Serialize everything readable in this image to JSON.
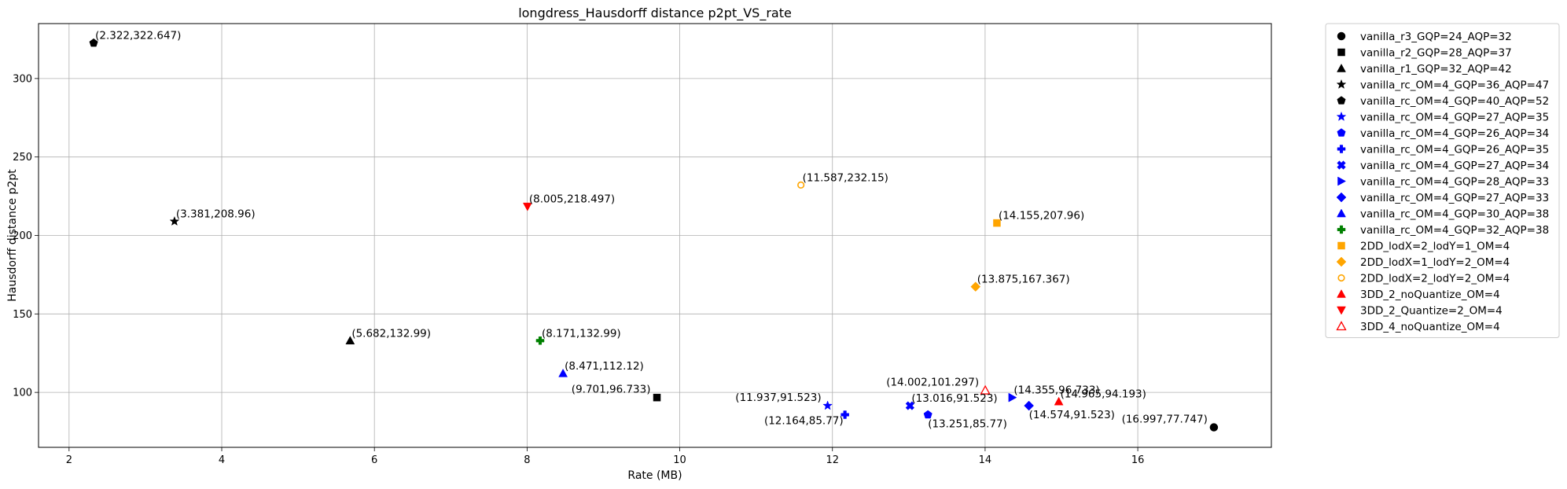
{
  "chart_data": {
    "type": "scatter",
    "title": "longdress_Hausdorff distance p2pt_VS_rate",
    "xlabel": "Rate (MB)",
    "ylabel": "Hausdorff distance p2pt",
    "xlim": [
      1.6,
      17.75
    ],
    "ylim": [
      65,
      335
    ],
    "xticks": [
      2,
      4,
      6,
      8,
      10,
      12,
      14,
      16
    ],
    "yticks": [
      100,
      150,
      200,
      250,
      300
    ],
    "grid": true,
    "legend_position": "outside-right",
    "series": [
      {
        "name": "vanilla_r3_GQP=24_AQP=32",
        "marker": "circle",
        "color": "#000000",
        "filled": true,
        "x": 16.997,
        "y": 77.747,
        "label": "(16.997,77.747)",
        "label_pos": "left"
      },
      {
        "name": "vanilla_r2_GQP=28_AQP=37",
        "marker": "square",
        "color": "#000000",
        "filled": true,
        "x": 9.701,
        "y": 96.733,
        "label": "(9.701,96.733)",
        "label_pos": "left"
      },
      {
        "name": "vanilla_r1_GQP=32_AQP=42",
        "marker": "triangle-up",
        "color": "#000000",
        "filled": true,
        "x": 5.682,
        "y": 132.99,
        "label": "(5.682,132.99)",
        "label_pos": "right"
      },
      {
        "name": "vanilla_rc_OM=4_GQP=36_AQP=47",
        "marker": "star",
        "color": "#000000",
        "filled": true,
        "x": 3.381,
        "y": 208.96,
        "label": "(3.381,208.96)",
        "label_pos": "right"
      },
      {
        "name": "vanilla_rc_OM=4_GQP=40_AQP=52",
        "marker": "pentagon",
        "color": "#000000",
        "filled": true,
        "x": 2.322,
        "y": 322.647,
        "label": "(2.322,322.647)",
        "label_pos": "right"
      },
      {
        "name": "vanilla_rc_OM=4_GQP=27_AQP=35",
        "marker": "star",
        "color": "#0000ff",
        "filled": true,
        "x": 11.937,
        "y": 91.523,
        "label": "(11.937,91.523)",
        "label_pos": "left"
      },
      {
        "name": "vanilla_rc_OM=4_GQP=26_AQP=34",
        "marker": "pentagon",
        "color": "#0000ff",
        "filled": true,
        "x": 13.251,
        "y": 85.77,
        "label": "(13.251,85.77)",
        "label_pos": "below"
      },
      {
        "name": "vanilla_rc_OM=4_GQP=26_AQP=35",
        "marker": "plus",
        "color": "#0000ff",
        "filled": true,
        "x": 12.164,
        "y": 85.77,
        "label": "(12.164,85.77)",
        "label_pos": "below-left"
      },
      {
        "name": "vanilla_rc_OM=4_GQP=27_AQP=34",
        "marker": "x",
        "color": "#0000ff",
        "filled": true,
        "x": 13.016,
        "y": 91.523,
        "label": "(13.016,91.523)",
        "label_pos": "right"
      },
      {
        "name": "vanilla_rc_OM=4_GQP=28_AQP=33",
        "marker": "triangle-right",
        "color": "#0000ff",
        "filled": true,
        "x": 14.355,
        "y": 96.733,
        "label": "(14.355,96.733)",
        "label_pos": "right"
      },
      {
        "name": "vanilla_rc_OM=4_GQP=27_AQP=33",
        "marker": "diamond",
        "color": "#0000ff",
        "filled": true,
        "x": 14.574,
        "y": 91.523,
        "label": "(14.574,91.523)",
        "label_pos": "below"
      },
      {
        "name": "vanilla_rc_OM=4_GQP=30_AQP=38",
        "marker": "triangle-up",
        "color": "#0000ff",
        "filled": true,
        "x": 8.471,
        "y": 112.12,
        "label": "(8.471,112.12)",
        "label_pos": "right"
      },
      {
        "name": "vanilla_rc_OM=4_GQP=32_AQP=38",
        "marker": "plus",
        "color": "#008000",
        "filled": true,
        "x": 8.171,
        "y": 132.99,
        "label": "(8.171,132.99)",
        "label_pos": "right"
      },
      {
        "name": "2DD_lodX=2_lodY=1_OM=4",
        "marker": "square",
        "color": "#ffa500",
        "filled": true,
        "x": 14.155,
        "y": 207.96,
        "label": "(14.155,207.96)",
        "label_pos": "right"
      },
      {
        "name": "2DD_lodX=1_lodY=2_OM=4",
        "marker": "diamond",
        "color": "#ffa500",
        "filled": true,
        "x": 13.875,
        "y": 167.367,
        "label": "(13.875,167.367)",
        "label_pos": "right"
      },
      {
        "name": "2DD_lodX=2_lodY=2_OM=4",
        "marker": "circle",
        "color": "#ffa500",
        "filled": false,
        "x": 11.587,
        "y": 232.15,
        "label": "(11.587,232.15)",
        "label_pos": "right"
      },
      {
        "name": "3DD_2_noQuantize_OM=4",
        "marker": "triangle-up",
        "color": "#ff0000",
        "filled": true,
        "x": 14.965,
        "y": 94.193,
        "label": "(14.965,94.193)",
        "label_pos": "right"
      },
      {
        "name": "3DD_2_Quantize=2_OM=4",
        "marker": "triangle-down",
        "color": "#ff0000",
        "filled": true,
        "x": 8.005,
        "y": 218.497,
        "label": "(8.005,218.497)",
        "label_pos": "right"
      },
      {
        "name": "3DD_4_noQuantize_OM=4",
        "marker": "triangle-up",
        "color": "#ff0000",
        "filled": false,
        "x": 14.002,
        "y": 101.297,
        "label": "(14.002,101.297)",
        "label_pos": "left"
      }
    ]
  }
}
